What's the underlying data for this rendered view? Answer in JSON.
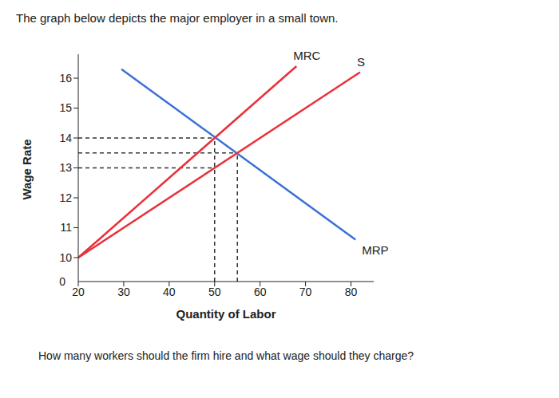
{
  "chart_data": {
    "type": "line",
    "title": "The graph below depicts the major employer in a small town.",
    "caption": "How many workers should the firm hire and what wage should they charge?",
    "x_label": "Quantity of Labor",
    "y_label": "Wage Rate",
    "origin_label": "0",
    "xlim": [
      20,
      85
    ],
    "xticks": [
      20,
      30,
      40,
      50,
      60,
      70,
      80
    ],
    "ylim": [
      9.2,
      16.8
    ],
    "yticks": [
      10,
      11,
      12,
      13,
      14,
      15,
      16
    ],
    "series": [
      {
        "name": "MRP",
        "color": "#3b6fd6",
        "x": [
          29.5,
          81
        ],
        "values": [
          16.3,
          10.6
        ]
      },
      {
        "name": "MRC",
        "color": "#e8313a",
        "x": [
          20,
          68
        ],
        "values": [
          10,
          16.4
        ]
      },
      {
        "name": "S",
        "color": "#e8313a",
        "x": [
          20,
          82
        ],
        "values": [
          10,
          16.2
        ]
      }
    ],
    "reference_lines": [
      {
        "x": [
          20,
          50
        ],
        "y": [
          14,
          14
        ]
      },
      {
        "x": [
          20,
          55
        ],
        "y": [
          13.5,
          13.5
        ]
      },
      {
        "x": [
          20,
          50
        ],
        "y": [
          13,
          13
        ]
      },
      {
        "x": [
          50,
          50
        ],
        "y": [
          9.2,
          14
        ]
      },
      {
        "x": [
          55,
          55
        ],
        "y": [
          9.2,
          13.5
        ]
      }
    ],
    "line_style": "dashed"
  }
}
